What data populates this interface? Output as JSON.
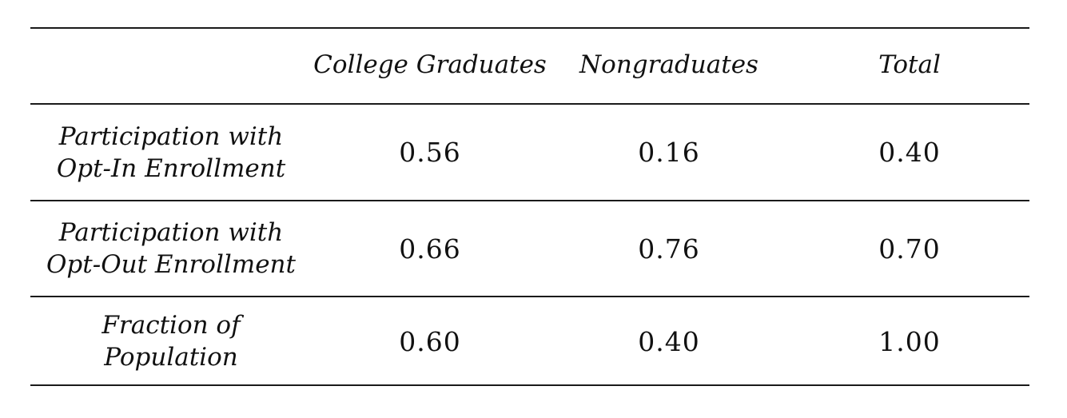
{
  "table": {
    "headers": [
      "College Graduates",
      "Nongraduates",
      "Total"
    ],
    "rows": [
      {
        "label_lines": [
          "Participation with",
          "Opt-In Enrollment"
        ],
        "values": [
          "0.56",
          "0.16",
          "0.40"
        ]
      },
      {
        "label_lines": [
          "Participation with",
          "Opt-Out Enrollment"
        ],
        "values": [
          "0.66",
          "0.76",
          "0.70"
        ]
      },
      {
        "label_lines": [
          "Fraction of",
          "Population"
        ],
        "values": [
          "0.60",
          "0.40",
          "1.00"
        ]
      }
    ]
  }
}
